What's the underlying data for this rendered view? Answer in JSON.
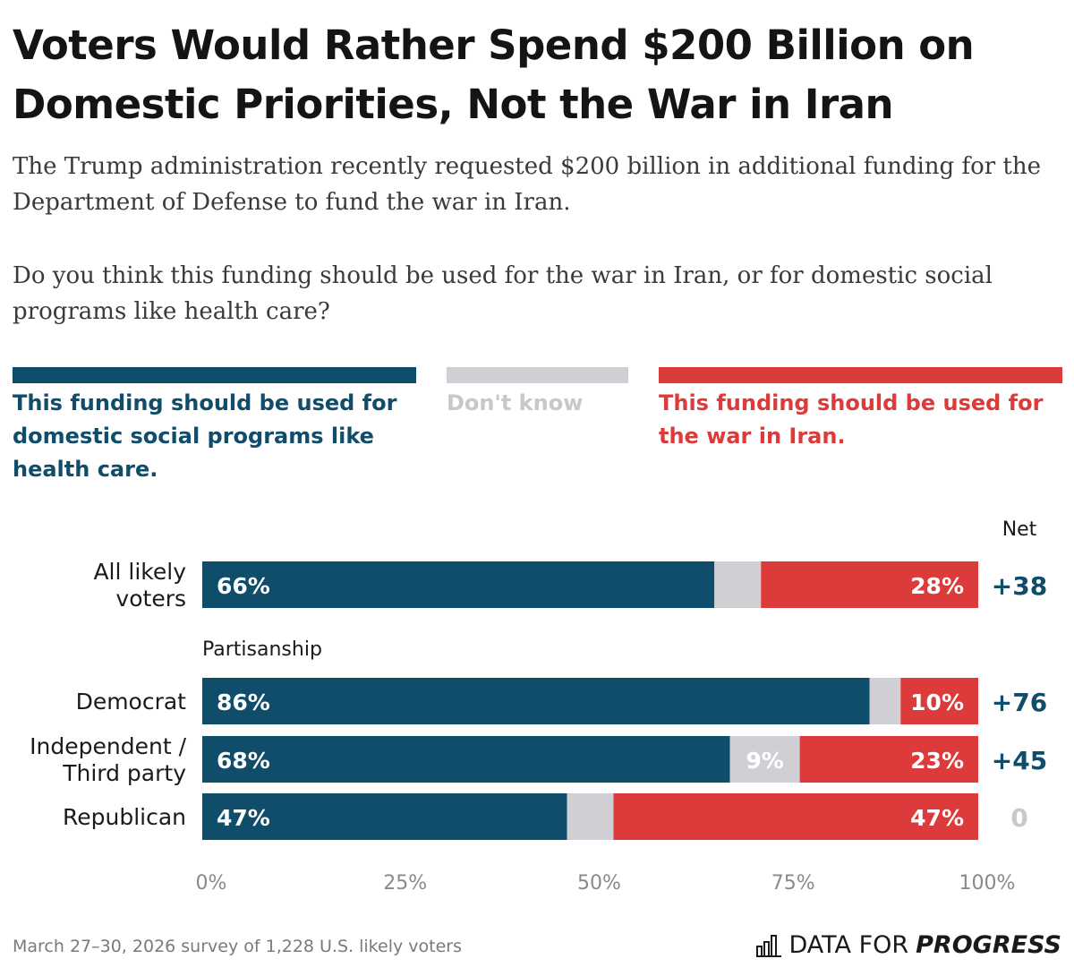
{
  "title": "Voters Would Rather Spend $200 Billion on Domestic Priorities, Not the War in Iran",
  "subtitle": "The Trump administration recently requested $200 billion in additional funding for the Department of Defense to fund the war in Iran.",
  "question": "Do you think this funding should be used for the war in Iran, or for domestic social programs like health care?",
  "colors": {
    "domestic": "#0f4d6b",
    "dont_know": "#d2cfd4",
    "war": "#db3b3a",
    "net_positive": "#0f4d6b",
    "net_zero": "#c9c9cd"
  },
  "legend": [
    {
      "label": "This funding should be used for domestic social programs like health care."
    },
    {
      "label": "Don't know"
    },
    {
      "label": "This funding should be used for the war in Iran."
    }
  ],
  "chart_data": {
    "type": "bar",
    "orientation": "horizontal",
    "stacked": true,
    "net_header": "Net",
    "group_header": "Partisanship",
    "categories": [
      "All likely voters",
      "Democrat",
      "Independent / Third party",
      "Republican"
    ],
    "series": [
      {
        "name": "This funding should be used for domestic social programs like health care.",
        "values": [
          66,
          86,
          68,
          47
        ],
        "labels": [
          "66%",
          "86%",
          "68%",
          "47%"
        ]
      },
      {
        "name": "Don't know",
        "values": [
          6,
          4,
          9,
          6
        ],
        "labels": [
          "",
          "",
          "9%",
          ""
        ]
      },
      {
        "name": "This funding should be used for the war in Iran.",
        "values": [
          28,
          10,
          23,
          47
        ],
        "labels": [
          "28%",
          "10%",
          "23%",
          "47%"
        ]
      }
    ],
    "net": [
      "+38",
      "+76",
      "+45",
      "0"
    ],
    "xlim": [
      0,
      100
    ],
    "xticks": [
      "0%",
      "25%",
      "50%",
      "75%",
      "100%"
    ],
    "grid": false
  },
  "footer": {
    "note": "March 27–30, 2026 survey of 1,228 U.S. likely voters",
    "brand_prefix": "DATA FOR",
    "brand_suffix": "PROGRESS"
  }
}
